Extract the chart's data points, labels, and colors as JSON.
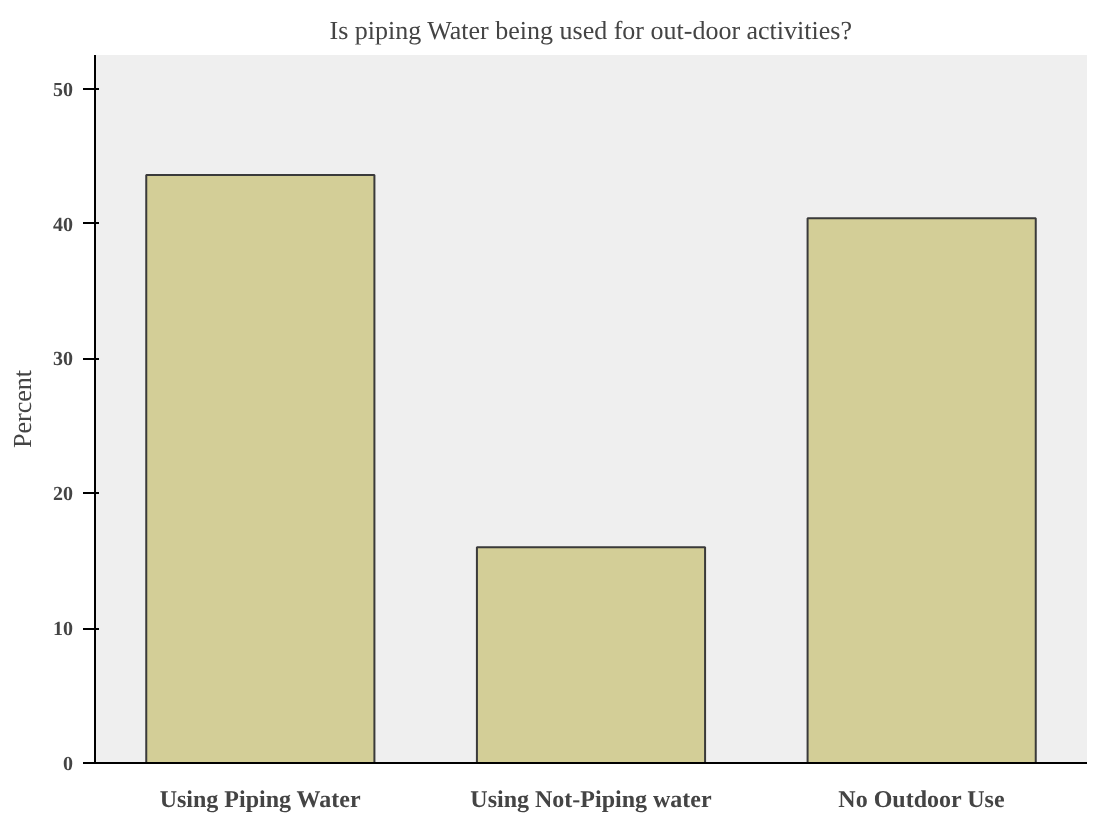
{
  "chart_data": {
    "type": "bar",
    "title": "Is piping Water being used for out-door activities?",
    "ylabel": "Percent",
    "categories": [
      "Using Piping Water",
      "Using Not-Piping water",
      "No Outdoor Use"
    ],
    "values": [
      43.6,
      16.0,
      40.4
    ],
    "color": "#d3ce97",
    "ylim": [
      0,
      52.5
    ],
    "yticks": [
      0,
      10,
      20,
      30,
      40,
      50
    ],
    "grid": false
  }
}
